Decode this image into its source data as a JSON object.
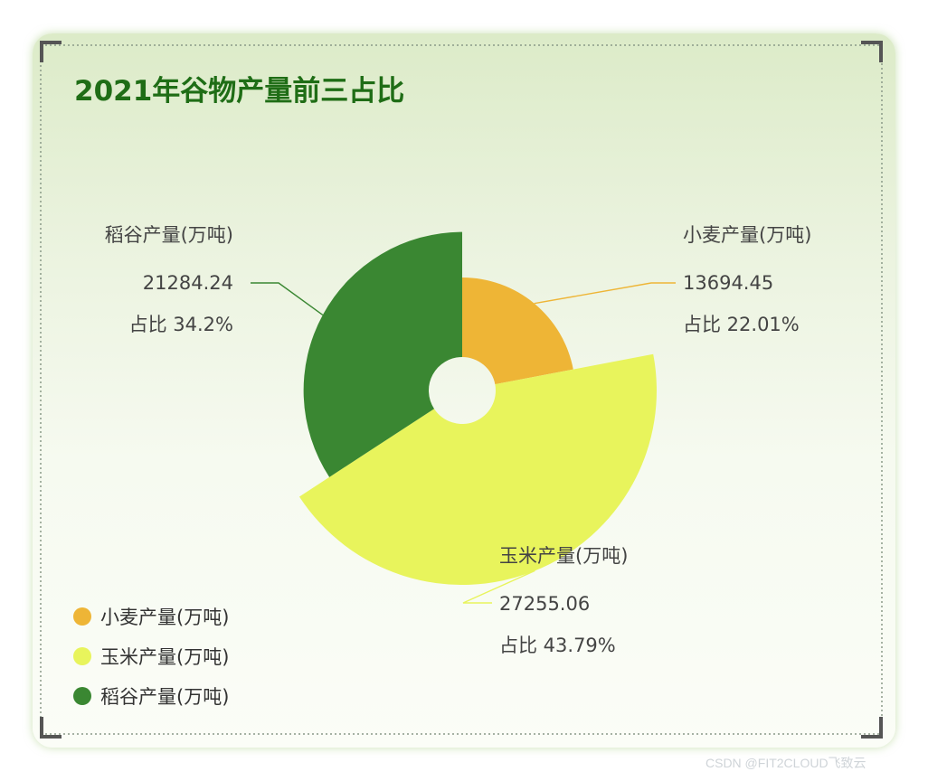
{
  "chart_data": {
    "type": "pie",
    "variant": "rose",
    "title": "2021年谷物产量前三占比",
    "series": [
      {
        "name": "小麦产量(万吨)",
        "value": 13694.45,
        "percent": "占比 22.01%",
        "color": "#eeb536"
      },
      {
        "name": "玉米产量(万吨)",
        "value": 27255.06,
        "percent": "占比 43.79%",
        "color": "#e8f45c"
      },
      {
        "name": "稻谷产量(万吨)",
        "value": 21284.24,
        "percent": "占比 34.2%",
        "color": "#3a8732"
      }
    ],
    "legend": {
      "placement": "bottom-left"
    }
  },
  "watermark": "CSDN @FIT2CLOUD飞致云",
  "colors": {
    "title": "#1f6d16",
    "label_text": "#444444",
    "border": "#555555"
  }
}
